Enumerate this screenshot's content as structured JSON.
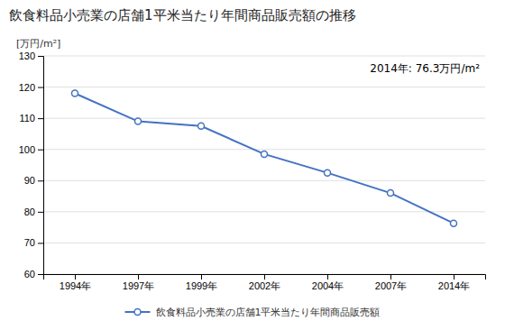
{
  "chart_data": {
    "type": "line",
    "title": "飲食料品小売業の店舗1平米当たり年間商品販売額の推移",
    "ylabel": "[万円/m²]",
    "annotation": "2014年: 76.3万円/m²",
    "categories": [
      "1994年",
      "1997年",
      "1999年",
      "2002年",
      "2004年",
      "2007年",
      "2014年"
    ],
    "series": [
      {
        "name": "飲食料品小売業の店舗1平米当たり年間商品販売額",
        "color": "#4472C4",
        "values": [
          118.0,
          109.0,
          107.5,
          98.5,
          92.5,
          86.0,
          76.3
        ]
      }
    ],
    "ylim": [
      60,
      130
    ],
    "yticks": [
      60,
      70,
      80,
      90,
      100,
      110,
      120,
      130
    ],
    "grid": true,
    "legend": "bottom",
    "marker": "circle"
  }
}
